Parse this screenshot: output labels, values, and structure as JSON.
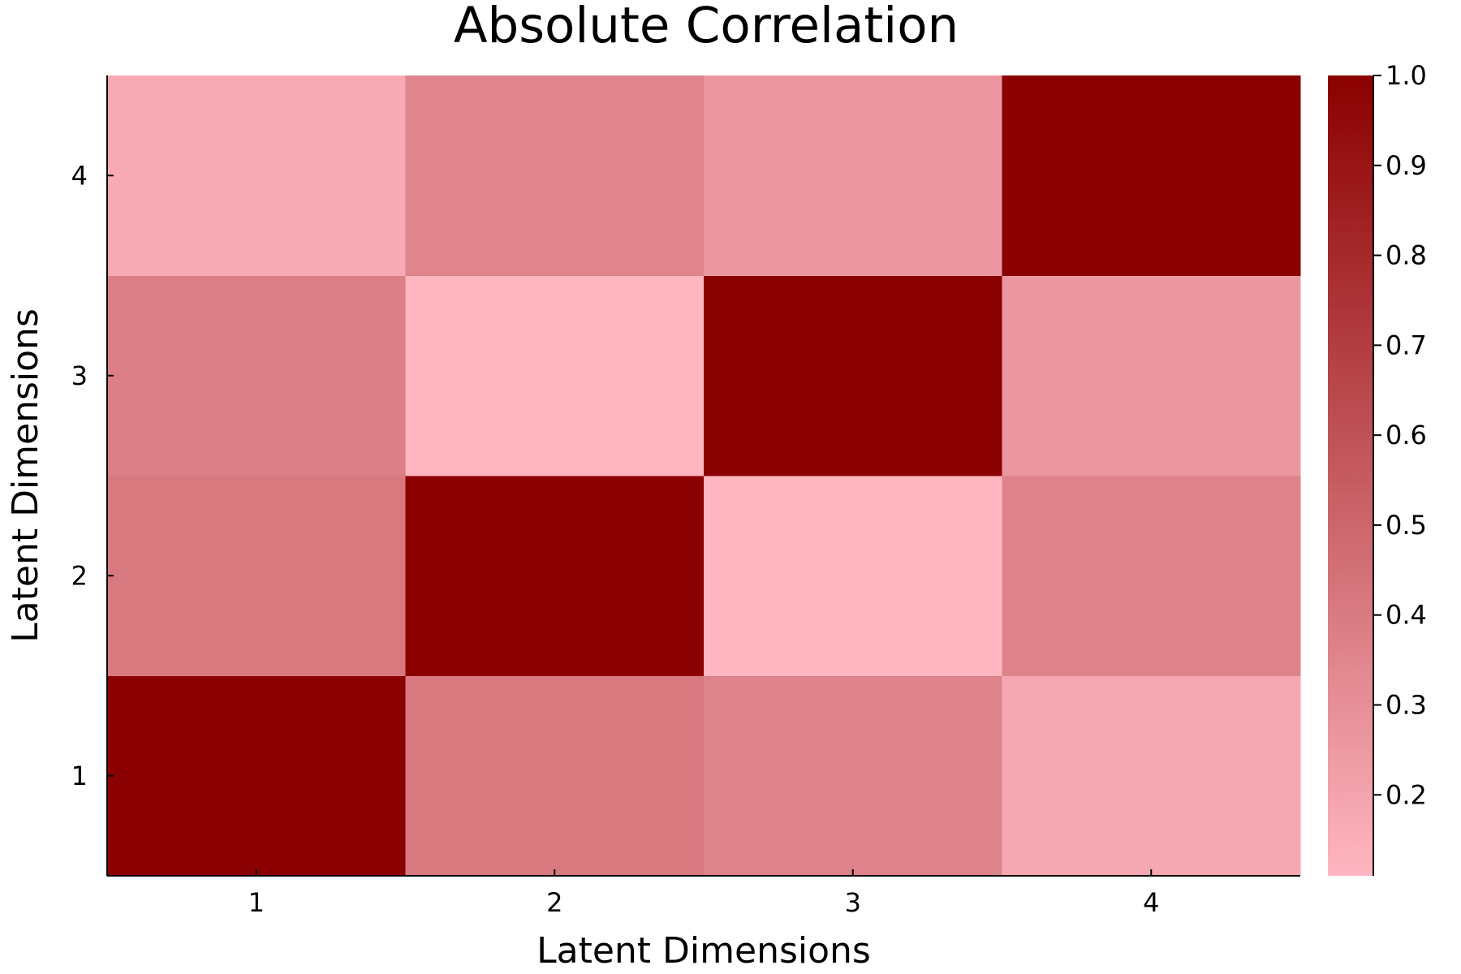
{
  "chart_data": {
    "type": "heatmap",
    "title": "Absolute Correlation",
    "xlabel": "Latent Dimensions",
    "ylabel": "Latent Dimensions",
    "x_categories": [
      "1",
      "2",
      "3",
      "4"
    ],
    "y_categories": [
      "1",
      "2",
      "3",
      "4"
    ],
    "values": [
      [
        1.0,
        0.41,
        0.36,
        0.18
      ],
      [
        0.41,
        1.0,
        0.11,
        0.36
      ],
      [
        0.38,
        0.11,
        1.0,
        0.26
      ],
      [
        0.17,
        0.35,
        0.26,
        1.0
      ]
    ],
    "colorbar": {
      "min": 0.11,
      "max": 1.0,
      "ticks": [
        0.2,
        0.3,
        0.4,
        0.5,
        0.6,
        0.7,
        0.8,
        0.9,
        1.0
      ],
      "tick_labels": [
        "0.2",
        "0.3",
        "0.4",
        "0.5",
        "0.6",
        "0.7",
        "0.8",
        "0.9",
        "1.0"
      ],
      "color_low": "#ffb6c1",
      "color_high": "#8b0000"
    },
    "grid": false
  }
}
